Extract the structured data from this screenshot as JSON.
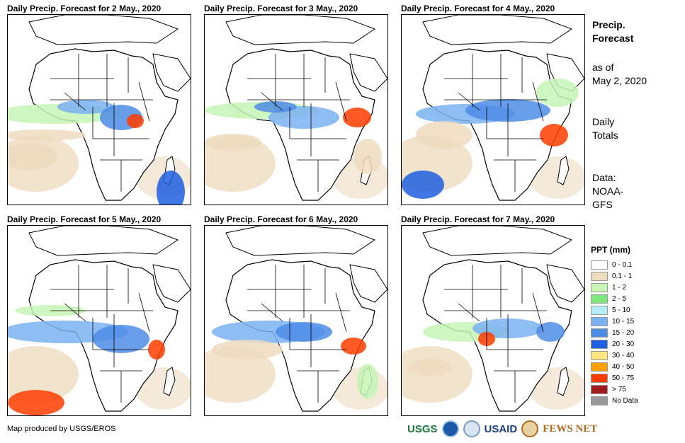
{
  "panels": [
    {
      "title": "Daily Precip. Forecast for 2 May., 2020"
    },
    {
      "title": "Daily Precip. Forecast for 3 May., 2020"
    },
    {
      "title": "Daily Precip. Forecast for 4 May., 2020"
    },
    {
      "title": "Daily Precip. Forecast for 5 May., 2020"
    },
    {
      "title": "Daily Precip. Forecast for 6 May., 2020"
    },
    {
      "title": "Daily Precip. Forecast for 7 May., 2020"
    }
  ],
  "side": {
    "title_line1": "Precip.",
    "title_line2": "Forecast",
    "asof_line1": "as of",
    "asof_line2": "May 2, 2020",
    "totals_line1": "Daily",
    "totals_line2": "Totals",
    "data_line1": "Data:",
    "data_line2": "NOAA-",
    "data_line3": "GFS"
  },
  "legend": {
    "title": "PPT (mm)",
    "items": [
      {
        "label": "0 - 0.1",
        "color": "#ffffff"
      },
      {
        "label": "0.1 - 1",
        "color": "#efdcbf"
      },
      {
        "label": "1 - 2",
        "color": "#c6f5b5"
      },
      {
        "label": "2 - 5",
        "color": "#7be879"
      },
      {
        "label": "5 - 10",
        "color": "#b6ecf7"
      },
      {
        "label": "10 - 15",
        "color": "#7ab1f1"
      },
      {
        "label": "15 - 20",
        "color": "#4d8ce6"
      },
      {
        "label": "20 - 30",
        "color": "#1f5fe0"
      },
      {
        "label": "30 - 40",
        "color": "#ffe680"
      },
      {
        "label": "40 - 50",
        "color": "#ff9f00"
      },
      {
        "label": "50 - 75",
        "color": "#ff3c00"
      },
      {
        "label": "> 75",
        "color": "#a01c1c"
      },
      {
        "label": "No Data",
        "color": "#999999"
      }
    ]
  },
  "credit": "Map produced by USGS/EROS",
  "logos": {
    "usgs": "USGS",
    "usaid": "USAID",
    "fewsnet": "FEWS NET"
  }
}
